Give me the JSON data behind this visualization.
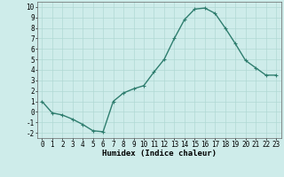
{
  "x": [
    0,
    1,
    2,
    3,
    4,
    5,
    6,
    7,
    8,
    9,
    10,
    11,
    12,
    13,
    14,
    15,
    16,
    17,
    18,
    19,
    20,
    21,
    22,
    23
  ],
  "y": [
    1.0,
    -0.1,
    -0.3,
    -0.7,
    -1.2,
    -1.8,
    -1.9,
    1.0,
    1.8,
    2.2,
    2.5,
    3.8,
    5.0,
    7.0,
    8.8,
    9.8,
    9.9,
    9.4,
    8.0,
    6.5,
    4.9,
    4.2,
    3.5,
    3.5
  ],
  "line_color": "#2e7d6e",
  "marker": "+",
  "marker_color": "#2e7d6e",
  "bg_color": "#ceecea",
  "grid_color": "#b0d8d4",
  "xlabel": "Humidex (Indice chaleur)",
  "xlim": [
    -0.5,
    23.5
  ],
  "ylim": [
    -2.5,
    10.5
  ],
  "xticks": [
    0,
    1,
    2,
    3,
    4,
    5,
    6,
    7,
    8,
    9,
    10,
    11,
    12,
    13,
    14,
    15,
    16,
    17,
    18,
    19,
    20,
    21,
    22,
    23
  ],
  "yticks": [
    -2,
    -1,
    0,
    1,
    2,
    3,
    4,
    5,
    6,
    7,
    8,
    9,
    10
  ],
  "tick_labelsize": 5.5,
  "xlabel_fontsize": 6.5,
  "line_width": 1.0,
  "marker_size": 3.5
}
